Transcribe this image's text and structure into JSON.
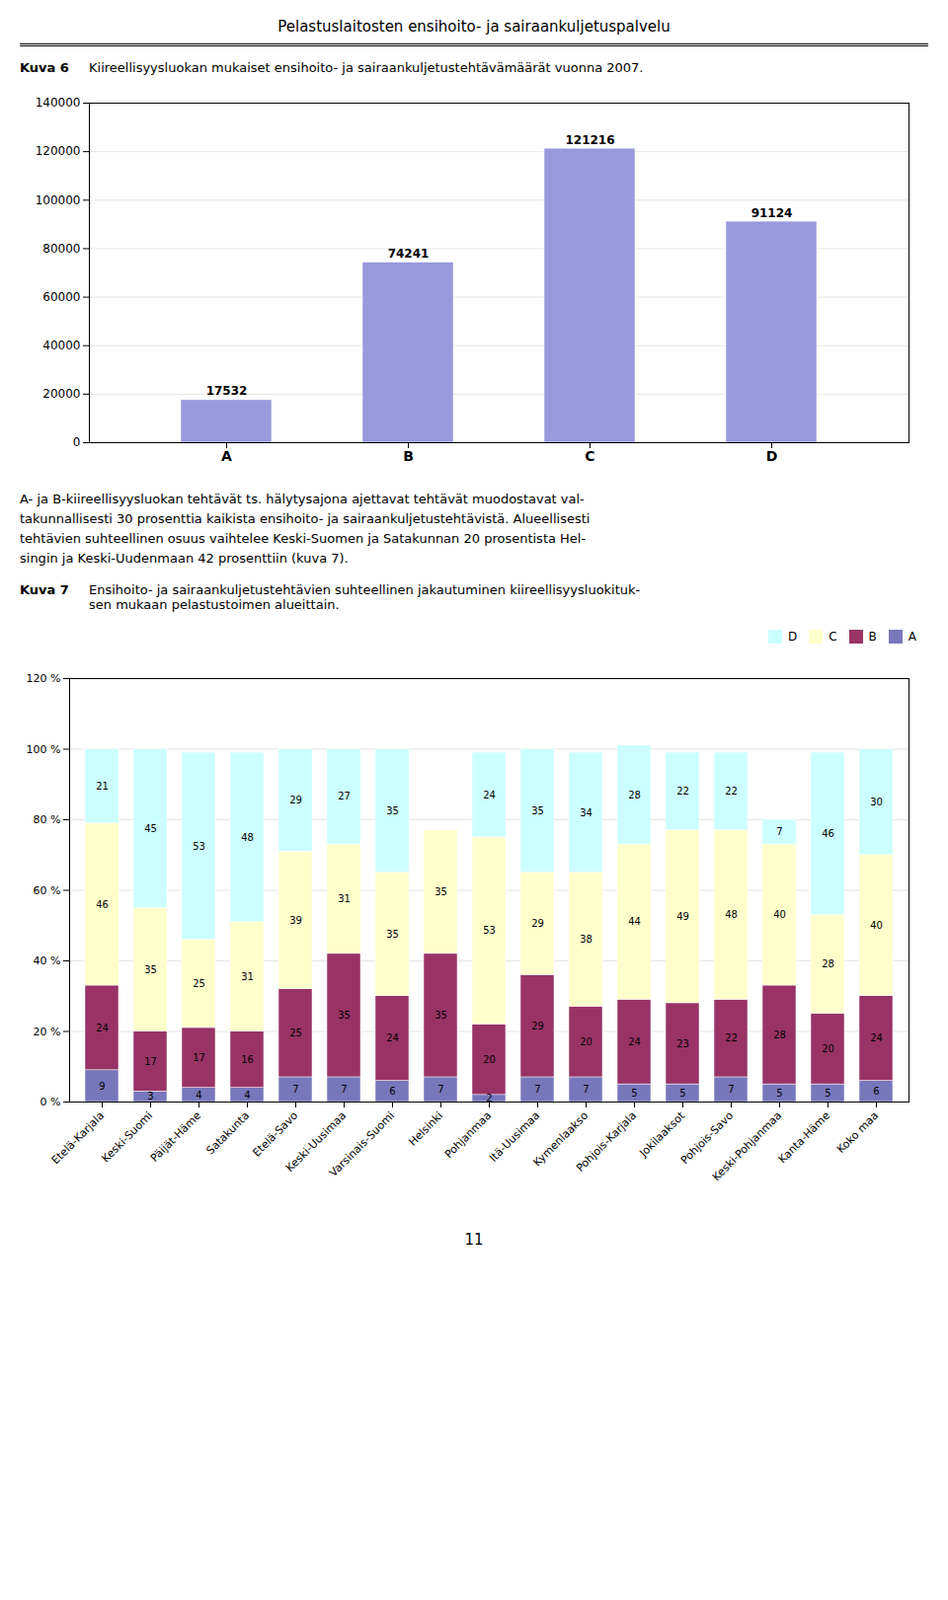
{
  "title": "Pelastuslaitosten ensihoito- ja sairaankuljetuspalvelu",
  "annotations": [
    "11"
  ],
  "chart_data": [
    {
      "type": "bar",
      "title": "Kuva 6",
      "subtitle": "Kiireellisyysluokan mukaiset ensihoito- ja sairaankuljetustehtävämäärät vuonna 2007.",
      "categories": [
        "A",
        "B",
        "C",
        "D"
      ],
      "values": [
        17532,
        74241,
        121216,
        91124
      ],
      "color": "#9999DD",
      "ylim": [
        0,
        140000
      ],
      "yticks": [
        0,
        20000,
        40000,
        60000,
        80000,
        100000,
        120000,
        140000
      ],
      "grid": true,
      "data_labels": true,
      "annotations": [
        "A- ja B-kiireellisyysluokan tehtävät ts. hälytysajona ajettavat tehtävät muodostavat val-",
        "takunnallisesti 30 prosenttia kaikista ensihoito- ja sairaankuljetustehtävistä. Alueellisesti",
        "tehtävien suhteellinen osuus vaihtelee Keski-Suomen ja Satakunnan 20 prosentista Hel-",
        "singin ja Keski-Uudenmaan 42 prosenttiin (kuva 7)."
      ]
    },
    {
      "type": "bar",
      "stacked": true,
      "title": "Kuva 7",
      "subtitle": [
        "Ensihoito- ja sairaankuljetustehtävien suhteellinen jakautuminen kiireellisyysluokituk-",
        "sen mukaan pelastustoimen alueittain."
      ],
      "categories": [
        "Etelä-Karjala",
        "Keski-Suomi",
        "Päijät-Häme",
        "Satakunta",
        "Etelä-Savo",
        "Keski-Uusimaa",
        "Varsinais-Suomi",
        "Helsinki",
        "Pohjanmaa",
        "Itä-Uusimaa",
        "Kymenlaakso",
        "Pohjois-Karjala",
        "Jokilaaksot",
        "Pohjois-Savo",
        "Keski-Pohjanmaa",
        "Kanta-Häme",
        "Koko maa"
      ],
      "series": [
        {
          "name": "A",
          "color": "#7777BB",
          "values": [
            9,
            3,
            4,
            4,
            7,
            7,
            6,
            7,
            2,
            7,
            7,
            5,
            5,
            7,
            5,
            5,
            6
          ]
        },
        {
          "name": "B",
          "color": "#993366",
          "values": [
            24,
            17,
            17,
            16,
            25,
            35,
            24,
            35,
            20,
            29,
            20,
            24,
            23,
            22,
            28,
            20,
            24
          ]
        },
        {
          "name": "C",
          "color": "#FFFFCC",
          "values": [
            46,
            35,
            25,
            31,
            39,
            31,
            35,
            35,
            53,
            29,
            38,
            44,
            49,
            48,
            40,
            28,
            40
          ]
        },
        {
          "name": "D",
          "color": "#CCFFFF",
          "values": [
            21,
            45,
            53,
            48,
            29,
            27,
            35,
            0,
            24,
            35,
            34,
            28,
            22,
            22,
            7,
            46,
            30
          ]
        }
      ],
      "ylim": [
        0,
        120
      ],
      "yticks": [
        {
          "value": 0,
          "label": "0 %"
        },
        {
          "value": 20,
          "label": "20 %"
        },
        {
          "value": 40,
          "label": "40 %"
        },
        {
          "value": 60,
          "label": "60 %"
        },
        {
          "value": 80,
          "label": "80 %"
        },
        {
          "value": 100,
          "label": "100 %"
        },
        {
          "value": 120,
          "label": "120 %"
        }
      ],
      "grid": true,
      "data_labels": true,
      "legend": "upper right"
    }
  ]
}
